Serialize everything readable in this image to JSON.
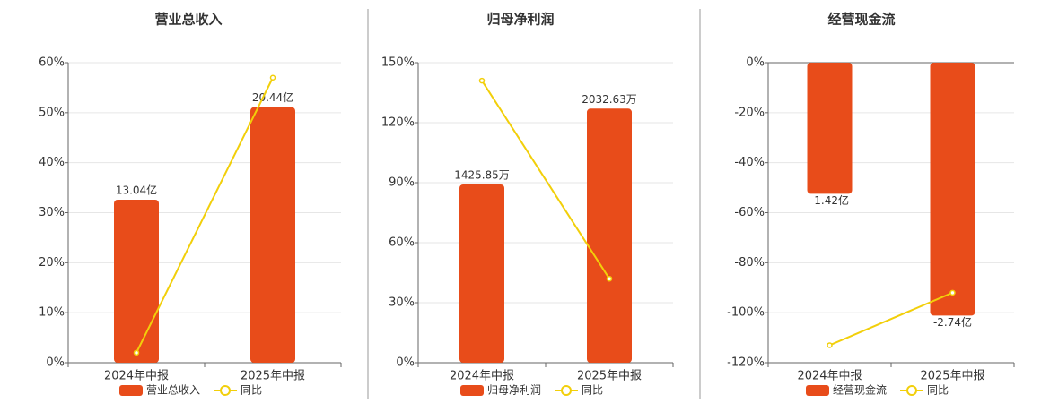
{
  "chart_data": [
    {
      "type": "bar-line",
      "title": "营业总收入",
      "categories": [
        "2024年中报",
        "2025年中报"
      ],
      "series": [
        {
          "name": "营业总收入",
          "color": "#e84c1a",
          "values": [
            13.04,
            20.44
          ],
          "value_labels": [
            "13.04亿",
            "20.44亿"
          ],
          "axis": "y2"
        },
        {
          "name": "同比",
          "color": "#f2cf0a",
          "values": [
            2,
            57
          ]
        }
      ],
      "ylim": [
        0,
        60
      ],
      "yticks": [
        {
          "value": 0,
          "label": "0%"
        },
        {
          "value": 10,
          "label": "10%"
        },
        {
          "value": 20,
          "label": "20%"
        },
        {
          "value": 30,
          "label": "30%"
        },
        {
          "value": 40,
          "label": "40%"
        },
        {
          "value": 50,
          "label": "50%"
        },
        {
          "value": 60,
          "label": "60%"
        }
      ],
      "y2lim": [
        0,
        24
      ],
      "grid": true
    },
    {
      "type": "bar-line",
      "title": "归母净利润",
      "categories": [
        "2024年中报",
        "2025年中报"
      ],
      "series": [
        {
          "name": "归母净利润",
          "color": "#e84c1a",
          "values": [
            1425.85,
            2032.63
          ],
          "value_labels": [
            "1425.85万",
            "2032.63万"
          ],
          "axis": "y2"
        },
        {
          "name": "同比",
          "color": "#f2cf0a",
          "values": [
            141,
            42
          ]
        }
      ],
      "ylim": [
        0,
        150
      ],
      "yticks": [
        {
          "value": 0,
          "label": "0%"
        },
        {
          "value": 30,
          "label": "30%"
        },
        {
          "value": 60,
          "label": "60%"
        },
        {
          "value": 90,
          "label": "90%"
        },
        {
          "value": 120,
          "label": "120%"
        },
        {
          "value": 150,
          "label": "150%"
        }
      ],
      "y2lim": [
        0,
        2400
      ],
      "grid": true
    },
    {
      "type": "bar-line",
      "title": "经营现金流",
      "categories": [
        "2024年中报",
        "2025年中报"
      ],
      "series": [
        {
          "name": "经营现金流",
          "color": "#e84c1a",
          "values": [
            -1.42,
            -2.74
          ],
          "value_labels": [
            "-1.42亿",
            "-2.74亿"
          ],
          "axis": "y2"
        },
        {
          "name": "同比",
          "color": "#f2cf0a",
          "values": [
            -113,
            -92
          ]
        }
      ],
      "ylim": [
        -120,
        0
      ],
      "yticks": [
        {
          "value": -120,
          "label": "-120%"
        },
        {
          "value": -100,
          "label": "-100%"
        },
        {
          "value": -80,
          "label": "-80%"
        },
        {
          "value": -60,
          "label": "-60%"
        },
        {
          "value": -40,
          "label": "-40%"
        },
        {
          "value": -20,
          "label": "-20%"
        },
        {
          "value": 0,
          "label": "0%"
        }
      ],
      "y2lim": [
        -3.25,
        0
      ],
      "grid": true
    }
  ]
}
